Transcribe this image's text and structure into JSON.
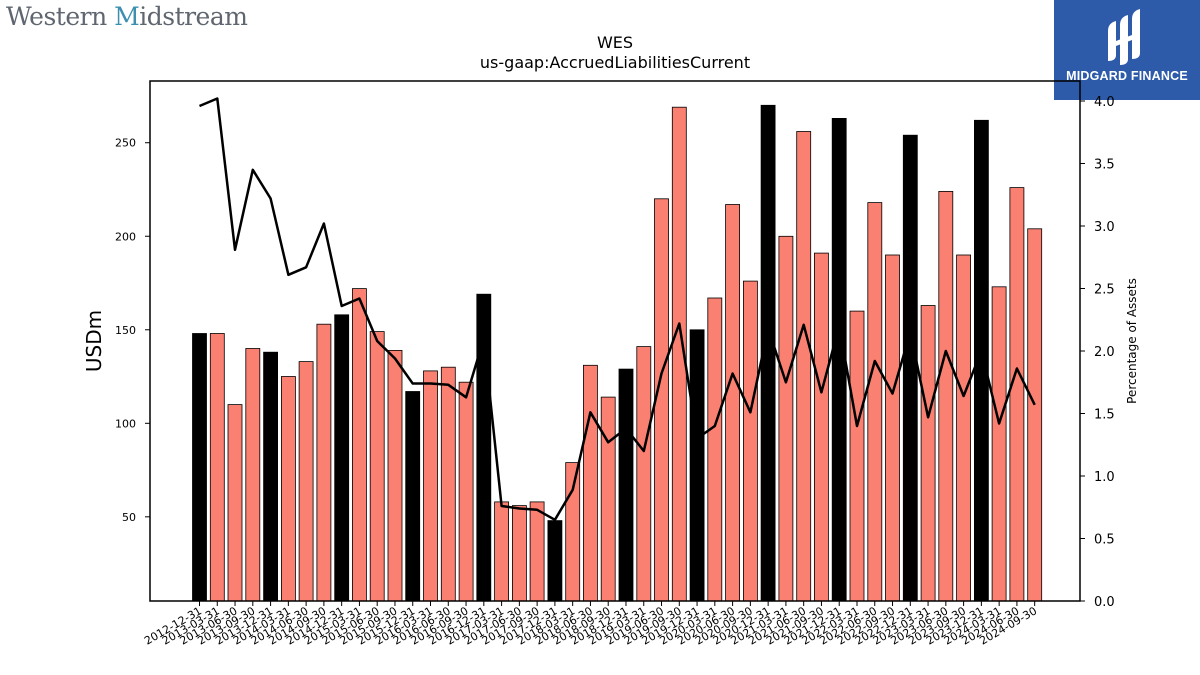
{
  "brand_left": {
    "part1": "Western ",
    "part2": "M",
    "part3": "idstream"
  },
  "brand_right": {
    "name": "MIDGARD FINANCE",
    "color": "#2d5baa"
  },
  "chart_data": {
    "type": "bar",
    "title": "WES",
    "subtitle": "us-gaap:AccruedLiabilitiesCurrent",
    "ylabel": "USDm",
    "y2label": "Percentage of Assets",
    "ylim": [
      5,
      283
    ],
    "y2lim": [
      0,
      4.16
    ],
    "yticks": [
      50,
      100,
      150,
      200,
      250
    ],
    "y2ticks": [
      "0.0",
      "0.5",
      "1.0",
      "1.5",
      "2.0",
      "2.5",
      "3.0",
      "3.5",
      "4.0"
    ],
    "colors": {
      "q4": "#000000",
      "other": "#fa8072",
      "line": "#000000"
    },
    "categories": [
      "2012-12-31",
      "2013-03-31",
      "2013-06-30",
      "2013-09-30",
      "2013-12-31",
      "2014-03-31",
      "2014-06-30",
      "2014-09-30",
      "2014-12-31",
      "2015-03-31",
      "2015-06-30",
      "2015-09-30",
      "2015-12-31",
      "2016-03-31",
      "2016-06-30",
      "2016-09-30",
      "2016-12-31",
      "2017-03-31",
      "2017-06-30",
      "2017-09-30",
      "2017-12-31",
      "2018-03-31",
      "2018-06-30",
      "2018-09-30",
      "2018-12-31",
      "2019-03-31",
      "2019-06-30",
      "2019-09-30",
      "2019-12-31",
      "2020-03-31",
      "2020-06-30",
      "2020-09-30",
      "2020-12-31",
      "2021-03-31",
      "2021-06-30",
      "2021-09-30",
      "2021-12-31",
      "2022-03-31",
      "2022-06-30",
      "2022-09-30",
      "2022-12-31",
      "2023-03-31",
      "2023-06-30",
      "2023-09-30",
      "2023-12-31",
      "2024-03-31",
      "2024-06-30",
      "2024-09-30"
    ],
    "series": [
      {
        "type": "bar",
        "values": [
          148,
          148,
          110,
          140,
          138,
          125,
          133,
          153,
          158,
          172,
          149,
          139,
          117,
          128,
          130,
          122,
          169,
          58,
          56,
          58,
          48,
          79,
          131,
          114,
          129,
          141,
          220,
          269,
          150,
          167,
          217,
          176,
          270,
          200,
          256,
          191,
          263,
          160,
          218,
          190,
          254,
          163,
          224,
          190,
          262,
          173,
          226,
          204
        ]
      },
      {
        "type": "line",
        "axis": "right",
        "values": [
          3.96,
          4.02,
          2.81,
          3.45,
          3.22,
          2.61,
          2.67,
          3.02,
          2.36,
          2.42,
          2.08,
          1.94,
          1.74,
          1.74,
          1.73,
          1.63,
          2.1,
          0.76,
          0.74,
          0.73,
          0.65,
          0.89,
          1.51,
          1.27,
          1.38,
          1.2,
          1.82,
          2.22,
          1.3,
          1.4,
          1.82,
          1.51,
          2.18,
          1.75,
          2.21,
          1.67,
          2.2,
          1.4,
          1.92,
          1.66,
          2.15,
          1.47,
          2.0,
          1.64,
          2.0,
          1.42,
          1.86,
          1.57
        ]
      }
    ]
  }
}
